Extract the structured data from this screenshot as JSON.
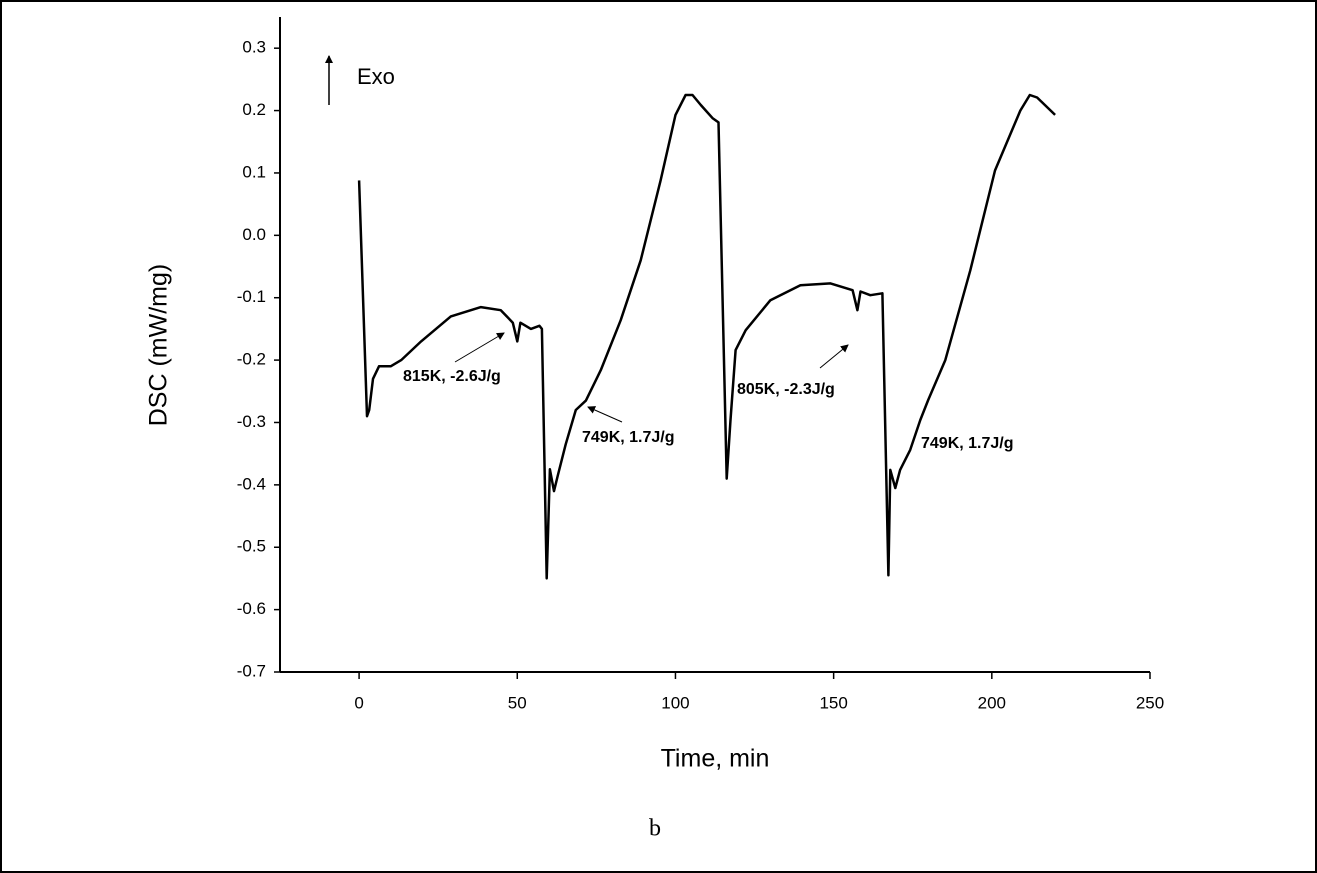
{
  "chart_data": {
    "type": "line",
    "x_label": "Time, min",
    "y_label": "DSC (mW/mg)",
    "caption": "b",
    "direction_label": "Exo",
    "annotations": [
      "815K, -2.6J/g",
      "749K, 1.7J/g",
      "805K, -2.3J/g",
      "749K, 1.7J/g"
    ],
    "color": "#000000",
    "xlim": [
      -25,
      250
    ],
    "ylim": [
      -0.7,
      0.35
    ],
    "xticks": [
      0,
      50,
      100,
      150,
      200,
      250
    ],
    "yticks": [
      0.3,
      0.2,
      0.1,
      {
        "value": 0,
        "label": "0.0"
      },
      -0.1,
      -0.2,
      -0.3,
      -0.4,
      -0.5,
      -0.6,
      -0.7
    ],
    "x": [
      0,
      2.5,
      3.2,
      4.4,
      6.3,
      10,
      13.3,
      19.6,
      29,
      38.5,
      44.8,
      48.6,
      50,
      51,
      54.3,
      57,
      57.8,
      59.3,
      60.3,
      61.6,
      62.8,
      65.3,
      68.5,
      71.7,
      76.4,
      82.7,
      89,
      95.3,
      100,
      103.2,
      105.4,
      108,
      111.7,
      113.6,
      116.2,
      117.4,
      119,
      122.2,
      130,
      139.5,
      149,
      156,
      157.5,
      158.5,
      161.6,
      165.4,
      167.3,
      167.9,
      169.5,
      171,
      174.2,
      177.4,
      179.9,
      185.3,
      193.2,
      201,
      209,
      212,
      214.3,
      220
    ],
    "values": [
      0.088,
      -0.29,
      -0.28,
      -0.23,
      -0.21,
      -0.21,
      -0.2,
      -0.17,
      -0.13,
      -0.115,
      -0.12,
      -0.14,
      -0.17,
      -0.14,
      -0.15,
      -0.145,
      -0.15,
      -0.55,
      -0.375,
      -0.41,
      -0.385,
      -0.335,
      -0.28,
      -0.265,
      -0.216,
      -0.136,
      -0.04,
      0.088,
      0.193,
      0.225,
      0.225,
      0.209,
      0.188,
      0.181,
      -0.39,
      -0.296,
      -0.184,
      -0.152,
      -0.104,
      -0.08,
      -0.077,
      -0.088,
      -0.12,
      -0.09,
      -0.096,
      -0.093,
      -0.545,
      -0.376,
      -0.405,
      -0.376,
      -0.344,
      -0.296,
      -0.264,
      -0.2,
      -0.056,
      0.104,
      0.2,
      0.225,
      0.221,
      0.193
    ]
  }
}
